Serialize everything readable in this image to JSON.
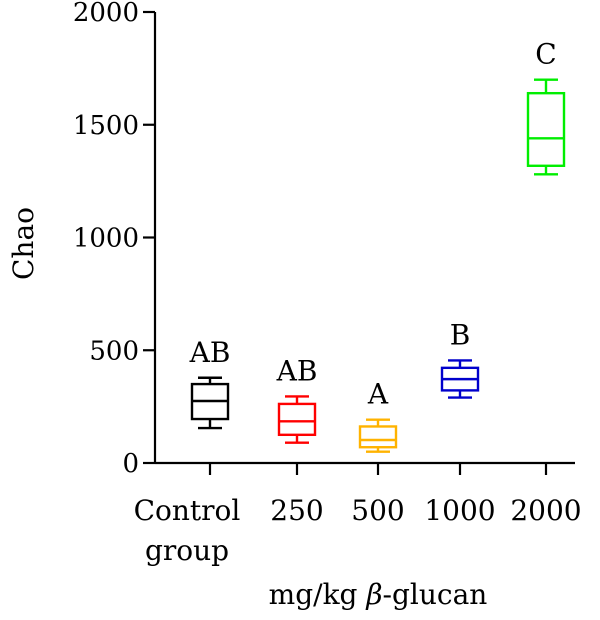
{
  "chart_data": {
    "type": "box",
    "ylabel": "Chao",
    "xlabel_prefix": "mg/kg ",
    "xlabel_symbol": "β",
    "xlabel_suffix": "-glucan",
    "ylim": [
      0,
      2000
    ],
    "yticks": [
      "0",
      "500",
      "1000",
      "1500",
      "2000"
    ],
    "categories": [
      [
        "Control",
        "group"
      ],
      [
        "250"
      ],
      [
        "500"
      ],
      [
        "1000"
      ],
      [
        "2000"
      ]
    ],
    "boxes": [
      {
        "group": "Control group",
        "min": 155,
        "q1": 195,
        "median": 275,
        "q3": 350,
        "max": 378,
        "label": "AB",
        "color": "#000000"
      },
      {
        "group": "250",
        "min": 90,
        "q1": 125,
        "median": 185,
        "q3": 262,
        "max": 295,
        "label": "AB",
        "color": "#ff0000"
      },
      {
        "group": "500",
        "min": 50,
        "q1": 70,
        "median": 102,
        "q3": 162,
        "max": 192,
        "label": "A",
        "color": "#ffb300"
      },
      {
        "group": "1000",
        "min": 290,
        "q1": 322,
        "median": 372,
        "q3": 422,
        "max": 455,
        "label": "B",
        "color": "#0000cc"
      },
      {
        "group": "2000",
        "min": 1280,
        "q1": 1318,
        "median": 1440,
        "q3": 1640,
        "max": 1700,
        "label": "C",
        "color": "#00ee00"
      }
    ]
  }
}
